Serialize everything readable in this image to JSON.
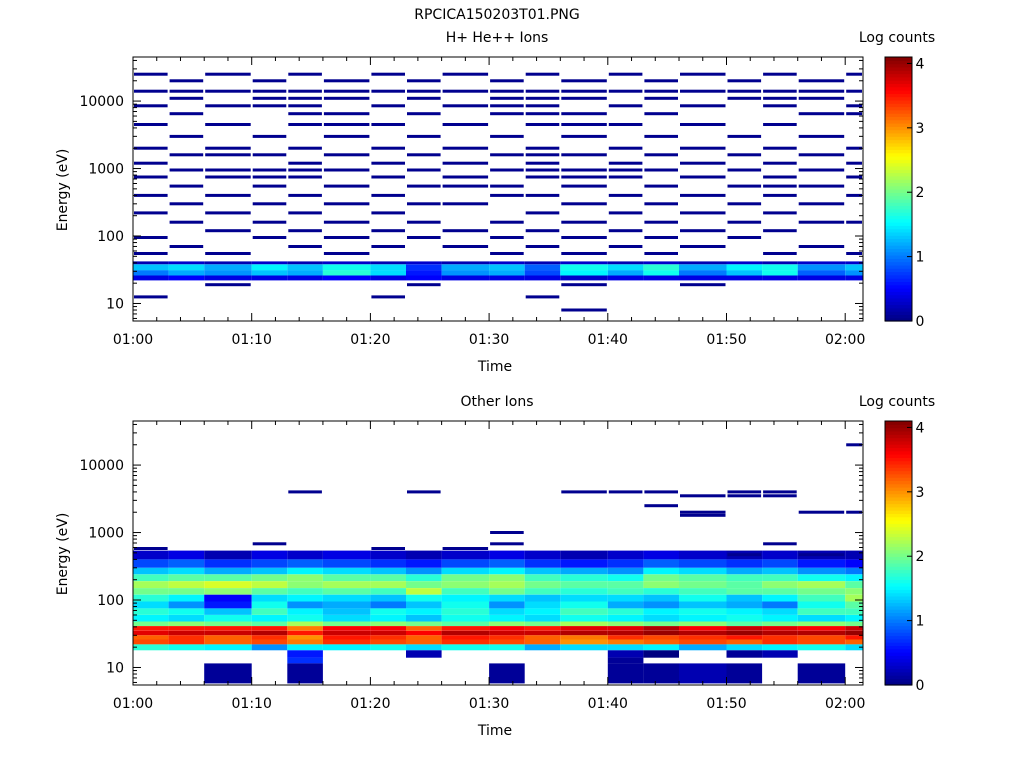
{
  "page_title": "RPCICA150203T01.PNG",
  "colorbar_ticks": [
    "0",
    "1",
    "2",
    "3",
    "4"
  ],
  "chart_data": [
    {
      "type": "heatmap",
      "title": "H+ He++ Ions",
      "xlabel": "Time",
      "ylabel": "Energy (eV)",
      "colorbar_label": "Log counts",
      "colorbar_range": [
        0,
        4.1
      ],
      "yscale": "log",
      "ylim": [
        5.5,
        45000
      ],
      "xlim": [
        "01:00",
        "02:01:30"
      ],
      "x_ticks": [
        "01:00",
        "01:10",
        "01:20",
        "01:30",
        "01:40",
        "01:50",
        "02:00"
      ],
      "y_ticks": [
        "10",
        "100",
        "1000",
        "10000"
      ],
      "x_bins": [
        "01:00",
        "01:03",
        "01:06",
        "01:10",
        "01:13",
        "01:16",
        "01:20",
        "01:23",
        "01:26",
        "01:30",
        "01:33",
        "01:36",
        "01:40",
        "01:43",
        "01:46",
        "01:50",
        "01:53",
        "01:56",
        "02:00"
      ],
      "bands": [
        {
          "e_lo": 38,
          "e_hi": 42,
          "values": [
            0.2,
            0.3,
            0.2,
            0.3,
            0.2,
            0.3,
            0.2,
            0.3,
            0.2,
            0.3,
            0.2,
            0.3,
            0.2,
            0.3,
            0.2,
            0.3,
            0.2,
            0.3,
            0.3
          ]
        },
        {
          "e_lo": 31,
          "e_hi": 38,
          "values": [
            1.3,
            1.4,
            1.2,
            1.5,
            1.3,
            1.6,
            1.4,
            0.7,
            1.2,
            1.3,
            0.9,
            1.6,
            1.4,
            1.7,
            1.2,
            1.5,
            1.6,
            1.1,
            1.3
          ]
        },
        {
          "e_lo": 26,
          "e_hi": 31,
          "values": [
            1.0,
            1.2,
            1.1,
            1.3,
            1.2,
            1.7,
            1.4,
            0.6,
            1.1,
            1.2,
            0.8,
            1.5,
            1.2,
            1.6,
            1.0,
            1.3,
            1.6,
            0.9,
            1.1
          ]
        },
        {
          "e_lo": 22,
          "e_hi": 26,
          "values": [
            0.4,
            0.5,
            0.4,
            0.4,
            0.4,
            0.5,
            0.4,
            0.5,
            0.4,
            0.4,
            0.4,
            0.3,
            0.4,
            0.4,
            0.4,
            0.4,
            0.4,
            0.4,
            0.4
          ]
        }
      ],
      "sparse": [
        {
          "e": 25000,
          "bins": [
            0,
            2,
            4,
            6,
            8,
            10,
            12,
            14,
            16,
            18
          ]
        },
        {
          "e": 20000,
          "bins": [
            1,
            3,
            5,
            7,
            9,
            11,
            13,
            15,
            17
          ]
        },
        {
          "e": 14000,
          "bins": [
            0,
            1,
            2,
            3,
            4,
            5,
            6,
            7,
            8,
            9,
            10,
            11,
            12,
            13,
            14,
            15,
            16,
            17,
            18
          ]
        },
        {
          "e": 11000,
          "bins": [
            1,
            3,
            4,
            5,
            7,
            9,
            10,
            11,
            13,
            15,
            16,
            17
          ]
        },
        {
          "e": 8500,
          "bins": [
            0,
            2,
            3,
            4,
            6,
            8,
            9,
            10,
            12,
            14,
            16,
            18
          ]
        },
        {
          "e": 6500,
          "bins": [
            1,
            4,
            5,
            7,
            9,
            10,
            11,
            13,
            17,
            18
          ]
        },
        {
          "e": 4500,
          "bins": [
            0,
            2,
            4,
            5,
            6,
            8,
            10,
            11,
            12,
            14,
            16
          ]
        },
        {
          "e": 3000,
          "bins": [
            1,
            3,
            5,
            7,
            9,
            11,
            13,
            15,
            17
          ]
        },
        {
          "e": 2000,
          "bins": [
            0,
            2,
            4,
            6,
            8,
            10,
            12,
            14,
            16,
            18
          ]
        },
        {
          "e": 1600,
          "bins": [
            1,
            2,
            3,
            5,
            7,
            9,
            10,
            11,
            13,
            15,
            17
          ]
        },
        {
          "e": 1200,
          "bins": [
            0,
            4,
            6,
            8,
            10,
            12,
            14,
            16,
            18
          ]
        },
        {
          "e": 950,
          "bins": [
            1,
            2,
            3,
            4,
            5,
            7,
            9,
            10,
            11,
            12,
            13,
            15,
            17
          ]
        },
        {
          "e": 750,
          "bins": [
            0,
            2,
            3,
            4,
            6,
            8,
            10,
            11,
            12,
            14,
            16,
            18
          ]
        },
        {
          "e": 550,
          "bins": [
            1,
            3,
            5,
            7,
            8,
            9,
            11,
            13,
            15,
            16,
            17
          ]
        },
        {
          "e": 400,
          "bins": [
            0,
            2,
            4,
            6,
            9,
            10,
            12,
            14,
            16,
            18
          ]
        },
        {
          "e": 300,
          "bins": [
            1,
            3,
            5,
            7,
            8,
            11,
            13,
            15,
            17
          ]
        },
        {
          "e": 220,
          "bins": [
            0,
            2,
            4,
            6,
            10,
            12,
            14,
            16
          ]
        },
        {
          "e": 160,
          "bins": [
            1,
            3,
            5,
            7,
            9,
            11,
            13,
            15,
            17,
            18
          ]
        },
        {
          "e": 120,
          "bins": [
            2,
            4,
            6,
            8,
            10,
            12,
            14,
            16
          ]
        },
        {
          "e": 95,
          "bins": [
            0,
            3,
            5,
            7,
            9,
            11,
            13,
            15
          ]
        },
        {
          "e": 70,
          "bins": [
            1,
            4,
            6,
            8,
            10,
            12,
            14,
            17
          ]
        },
        {
          "e": 55,
          "bins": [
            0,
            2,
            5,
            9,
            11,
            13,
            16,
            18
          ]
        },
        {
          "e": 12.5,
          "bins": [
            0,
            6,
            10
          ]
        },
        {
          "e": 19,
          "bins": [
            2,
            7,
            11,
            14
          ]
        },
        {
          "e": 8,
          "bins": [
            11
          ]
        }
      ]
    },
    {
      "type": "heatmap",
      "title": "Other Ions",
      "xlabel": "Time",
      "ylabel": "Energy (eV)",
      "colorbar_label": "Log counts",
      "colorbar_range": [
        0,
        4.1
      ],
      "yscale": "log",
      "ylim": [
        5.5,
        45000
      ],
      "xlim": [
        "01:00",
        "02:01:30"
      ],
      "x_ticks": [
        "01:00",
        "01:10",
        "01:20",
        "01:30",
        "01:40",
        "01:50",
        "02:00"
      ],
      "y_ticks": [
        "10",
        "100",
        "1000",
        "10000"
      ],
      "x_bins": [
        "01:00",
        "01:03",
        "01:06",
        "01:10",
        "01:13",
        "01:16",
        "01:20",
        "01:23",
        "01:26",
        "01:30",
        "01:33",
        "01:36",
        "01:40",
        "01:43",
        "01:46",
        "01:50",
        "01:53",
        "01:56",
        "02:00"
      ],
      "bands": [
        {
          "e_lo": 400,
          "e_hi": 540,
          "values": [
            0.3,
            0.4,
            0.2,
            0.4,
            0.3,
            0.4,
            0.3,
            0.2,
            0.3,
            0.4,
            0.3,
            0.2,
            0.3,
            0.4,
            0.3,
            0.2,
            0.3,
            0.2,
            0.2
          ]
        },
        {
          "e_lo": 300,
          "e_hi": 400,
          "values": [
            0.8,
            0.9,
            0.7,
            0.8,
            0.9,
            0.8,
            0.7,
            0.6,
            0.8,
            0.9,
            0.7,
            0.6,
            0.7,
            0.9,
            0.8,
            0.7,
            0.8,
            0.6,
            0.5
          ]
        },
        {
          "e_lo": 240,
          "e_hi": 300,
          "values": [
            1.3,
            1.4,
            1.2,
            1.3,
            1.5,
            1.4,
            1.3,
            1.1,
            1.4,
            1.5,
            1.3,
            1.2,
            1.1,
            1.5,
            1.4,
            1.2,
            1.3,
            1.1,
            1.0
          ]
        },
        {
          "e_lo": 190,
          "e_hi": 240,
          "values": [
            1.8,
            1.9,
            1.9,
            2.0,
            2.1,
            1.9,
            1.9,
            1.7,
            2.0,
            2.1,
            1.8,
            1.7,
            1.6,
            2.0,
            1.9,
            1.8,
            1.8,
            1.6,
            1.5
          ]
        },
        {
          "e_lo": 150,
          "e_hi": 190,
          "values": [
            2.2,
            2.3,
            2.4,
            2.3,
            2.1,
            2.2,
            2.2,
            2.0,
            2.1,
            2.2,
            2.0,
            1.9,
            1.9,
            2.1,
            2.0,
            1.9,
            2.1,
            2.2,
            1.9
          ]
        },
        {
          "e_lo": 120,
          "e_hi": 150,
          "values": [
            2.0,
            2.0,
            2.1,
            1.9,
            1.8,
            1.9,
            1.8,
            2.3,
            1.8,
            2.0,
            1.8,
            1.7,
            1.8,
            1.7,
            1.8,
            1.9,
            1.9,
            2.0,
            2.1
          ]
        },
        {
          "e_lo": 95,
          "e_hi": 120,
          "values": [
            1.7,
            1.5,
            0.5,
            1.4,
            1.5,
            1.4,
            1.3,
            1.6,
            1.5,
            1.4,
            1.3,
            1.4,
            1.4,
            1.3,
            1.6,
            1.3,
            1.5,
            1.8,
            2.2
          ]
        },
        {
          "e_lo": 75,
          "e_hi": 95,
          "values": [
            1.4,
            1.1,
            0.6,
            1.6,
            1.1,
            1.2,
            1.0,
            1.3,
            1.6,
            1.1,
            1.4,
            1.6,
            1.2,
            1.1,
            1.3,
            1.2,
            1.0,
            1.6,
            1.9
          ]
        },
        {
          "e_lo": 60,
          "e_hi": 75,
          "values": [
            1.7,
            1.6,
            1.3,
            1.8,
            1.5,
            1.3,
            1.6,
            1.5,
            1.7,
            1.4,
            1.5,
            1.8,
            1.7,
            1.5,
            1.6,
            1.5,
            1.4,
            1.8,
            1.8
          ]
        },
        {
          "e_lo": 48,
          "e_hi": 60,
          "values": [
            1.5,
            1.4,
            1.6,
            1.5,
            1.6,
            1.4,
            1.5,
            1.3,
            1.6,
            1.5,
            1.4,
            1.6,
            1.5,
            1.4,
            1.5,
            1.6,
            1.5,
            1.4,
            1.5
          ]
        },
        {
          "e_lo": 41,
          "e_hi": 48,
          "values": [
            2.0,
            2.1,
            2.0,
            1.9,
            2.2,
            2.0,
            2.1,
            2.0,
            1.9,
            2.1,
            2.0,
            2.2,
            2.1,
            2.0,
            2.1,
            1.9,
            2.0,
            2.1,
            2.0
          ]
        },
        {
          "e_lo": 35,
          "e_hi": 41,
          "values": [
            3.5,
            3.5,
            3.5,
            3.5,
            3.1,
            3.6,
            3.6,
            3.2,
            3.5,
            3.6,
            3.5,
            3.7,
            3.7,
            3.9,
            3.6,
            3.8,
            3.7,
            3.6,
            3.8
          ]
        },
        {
          "e_lo": 30,
          "e_hi": 35,
          "values": [
            3.7,
            3.8,
            3.8,
            3.9,
            3.5,
            3.8,
            3.8,
            3.6,
            3.9,
            3.8,
            3.8,
            3.9,
            3.9,
            4.0,
            3.9,
            4.0,
            3.9,
            3.9,
            4.0
          ]
        },
        {
          "e_lo": 26,
          "e_hi": 30,
          "values": [
            3.2,
            3.4,
            3.2,
            3.4,
            3.0,
            3.5,
            3.4,
            3.2,
            3.5,
            3.4,
            3.2,
            3.1,
            3.4,
            3.3,
            3.4,
            3.5,
            3.4,
            3.3,
            3.5
          ]
        },
        {
          "e_lo": 22,
          "e_hi": 26,
          "values": [
            3.3,
            3.4,
            3.2,
            3.3,
            3.1,
            3.4,
            3.3,
            3.2,
            3.4,
            3.3,
            3.2,
            3.0,
            3.1,
            3.2,
            3.3,
            3.2,
            3.4,
            3.3,
            3.2
          ]
        },
        {
          "e_lo": 18,
          "e_hi": 22,
          "values": [
            1.7,
            1.6,
            1.5,
            1.1,
            1.5,
            1.5,
            1.6,
            1.4,
            1.6,
            1.6,
            1.2,
            1.4,
            1.4,
            1.5,
            1.2,
            1.4,
            1.5,
            1.6,
            1.4
          ]
        },
        {
          "e_lo": 14,
          "e_hi": 18,
          "values": [
            null,
            null,
            null,
            null,
            0.6,
            null,
            null,
            0.2,
            null,
            null,
            null,
            null,
            0.2,
            0.0,
            null,
            0.1,
            0.2,
            null,
            null
          ]
        },
        {
          "e_lo": 11.5,
          "e_hi": 14,
          "values": [
            null,
            null,
            null,
            null,
            0.7,
            null,
            null,
            null,
            null,
            null,
            null,
            null,
            0.1,
            null,
            null,
            null,
            null,
            null,
            null
          ]
        },
        {
          "e_lo": 8,
          "e_hi": 11.5,
          "values": [
            null,
            null,
            0.1,
            null,
            0.1,
            null,
            null,
            null,
            null,
            0.1,
            null,
            null,
            0.1,
            0.1,
            0.2,
            0.1,
            null,
            0.1,
            null
          ]
        },
        {
          "e_lo": 5.8,
          "e_hi": 8,
          "values": [
            null,
            null,
            0.1,
            null,
            0.1,
            null,
            null,
            null,
            null,
            0.1,
            null,
            null,
            0.1,
            0.1,
            0.2,
            0.1,
            null,
            0.1,
            null
          ]
        }
      ],
      "sparse": [
        {
          "e": 20000,
          "bins": [
            18
          ]
        },
        {
          "e": 4000,
          "bins": [
            4,
            7,
            11,
            12,
            13,
            15,
            16
          ]
        },
        {
          "e": 3500,
          "bins": [
            14,
            15,
            16
          ]
        },
        {
          "e": 2500,
          "bins": [
            13
          ]
        },
        {
          "e": 2000,
          "bins": [
            14,
            17,
            18
          ]
        },
        {
          "e": 1800,
          "bins": [
            14
          ]
        },
        {
          "e": 1000,
          "bins": [
            9
          ]
        },
        {
          "e": 680,
          "bins": [
            3,
            9,
            16
          ]
        },
        {
          "e": 580,
          "bins": [
            0,
            6,
            8
          ]
        },
        {
          "e": 470,
          "bins": [
            15,
            17
          ]
        }
      ]
    }
  ]
}
